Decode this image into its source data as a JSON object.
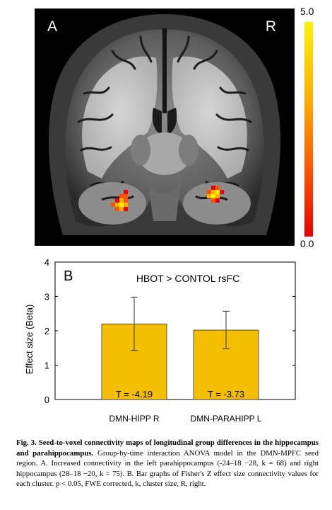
{
  "panel_a": {
    "letter": "A",
    "side_label": "R",
    "colorbar": {
      "max_label": "5.0",
      "min_label": "0.0",
      "colors": [
        "#fff200",
        "#ffb000",
        "#ff5200",
        "#e40000"
      ]
    }
  },
  "chart_data": {
    "type": "bar",
    "panel_letter": "B",
    "title": "HBOT > CONTOL rsFC",
    "ylabel": "Effect size (Beta)",
    "xlabel": "",
    "ylim": [
      0,
      4
    ],
    "yticks": [
      "0",
      "1",
      "2",
      "3",
      "4"
    ],
    "categories": [
      "DMN-HIPP R",
      "DMN-PARAHIPP L"
    ],
    "values": [
      2.2,
      2.02
    ],
    "error_upper": [
      2.98,
      2.57
    ],
    "error_lower": [
      1.43,
      1.48
    ],
    "annotations": [
      "T = -4.19",
      "T = -3.73"
    ],
    "bar_color": "#f6be00",
    "grid": false
  },
  "caption": {
    "fig_label": "Fig. 3.",
    "bold_title": "Seed-to-voxel connectivity maps of longitudinal group differences in the hippocampus and parahippocampus.",
    "body": "Group-by-time interaction ANOVA model in the DMN-MPFC seed region. A. Increased connectivity in the left parahippocampus (-24–18 −28, k = 68) and right hippocampus (28–18 −20, k = 75). B. Bar graphs of Fisher's Z effect size connectivity values for each cluster. p < 0.05, FWE corrected, k, cluster size, R, right."
  }
}
